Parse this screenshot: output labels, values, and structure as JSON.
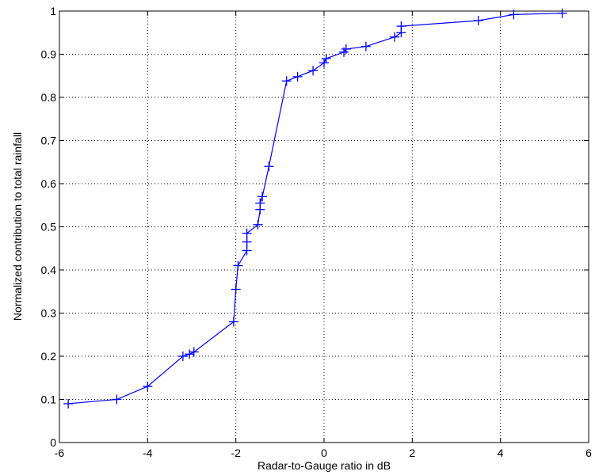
{
  "chart_data": {
    "type": "line",
    "title": "",
    "xlabel": "Radar-to-Gauge ratio in dB",
    "ylabel": "Normalized contribution to total rainfall",
    "xlim": [
      -6,
      6
    ],
    "ylim": [
      0,
      1
    ],
    "x_ticks": [
      -6,
      -4,
      -2,
      0,
      2,
      4,
      6
    ],
    "x_tick_labels": [
      "-6",
      "-4",
      "-2",
      "0",
      "2",
      "4",
      "6"
    ],
    "y_ticks": [
      0,
      0.1,
      0.2,
      0.3,
      0.4,
      0.5,
      0.6,
      0.7,
      0.8,
      0.9,
      1
    ],
    "y_tick_labels": [
      "0",
      "0.1",
      "0.2",
      "0.3",
      "0.4",
      "0.5",
      "0.6",
      "0.7",
      "0.8",
      "0.9",
      "1"
    ],
    "grid": true,
    "line_color": "#0000ff",
    "marker": "plus",
    "series": [
      {
        "x": [
          -5.8,
          -4.7,
          -4.0,
          -3.2,
          -3.05,
          -2.95,
          -2.05,
          -2.0,
          -1.95,
          -1.75,
          -1.75,
          -1.75,
          -1.5,
          -1.45,
          -1.45,
          -1.4,
          -1.25,
          -0.85,
          -0.6,
          -0.25,
          0.0,
          0.05,
          0.45,
          0.5,
          0.95,
          1.6,
          1.75,
          1.75,
          3.5,
          4.3,
          5.4
        ],
        "y": [
          0.09,
          0.1,
          0.13,
          0.2,
          0.205,
          0.21,
          0.28,
          0.355,
          0.41,
          0.445,
          0.465,
          0.485,
          0.505,
          0.54,
          0.555,
          0.57,
          0.64,
          0.838,
          0.848,
          0.862,
          0.88,
          0.89,
          0.905,
          0.912,
          0.918,
          0.94,
          0.95,
          0.965,
          0.978,
          0.992,
          0.995
        ]
      }
    ]
  }
}
